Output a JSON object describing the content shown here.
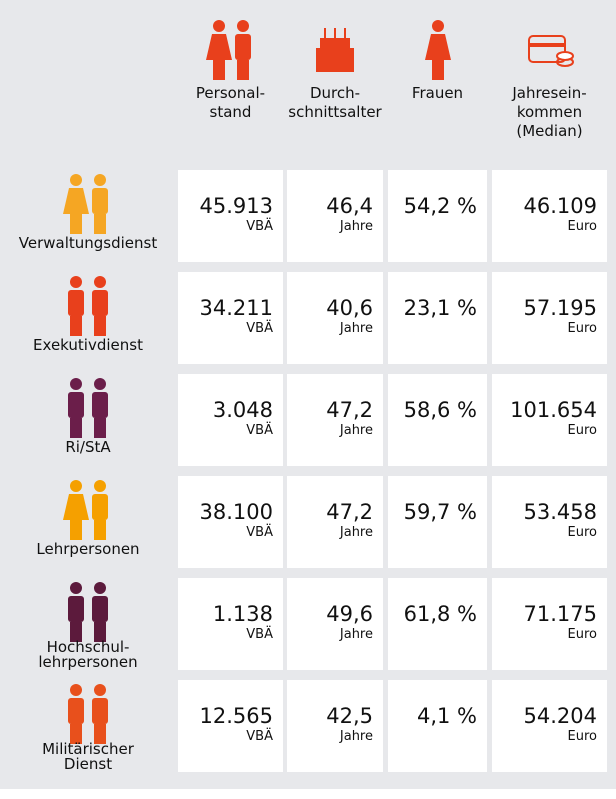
{
  "columns": [
    {
      "lines": [
        "Personal-",
        "stand"
      ]
    },
    {
      "lines": [
        "Durch-",
        "schnittsalter"
      ]
    },
    {
      "lines": [
        "Frauen"
      ]
    },
    {
      "lines": [
        "Jahresein-",
        "kommen",
        "(Median)"
      ]
    }
  ],
  "rows": [
    {
      "label": [
        "Verwaltungsdienst"
      ],
      "cells": [
        {
          "value": "45.913",
          "unit": "VBÄ"
        },
        {
          "value": "46,4",
          "unit": "Jahre"
        },
        {
          "value": "54,2 %"
        },
        {
          "value": "46.109",
          "unit": "Euro"
        }
      ]
    },
    {
      "label": [
        "Exekutivdienst"
      ],
      "cells": [
        {
          "value": "34.211",
          "unit": "VBÄ"
        },
        {
          "value": "40,6",
          "unit": "Jahre"
        },
        {
          "value": "23,1 %"
        },
        {
          "value": "57.195",
          "unit": "Euro"
        }
      ]
    },
    {
      "label": [
        "Ri/StA"
      ],
      "cells": [
        {
          "value": "3.048",
          "unit": "VBÄ"
        },
        {
          "value": "47,2",
          "unit": "Jahre"
        },
        {
          "value": "58,6 %"
        },
        {
          "value": "101.654",
          "unit": "Euro"
        }
      ]
    },
    {
      "label": [
        "Lehrpersonen"
      ],
      "cells": [
        {
          "value": "38.100",
          "unit": "VBÄ"
        },
        {
          "value": "47,2",
          "unit": "Jahre"
        },
        {
          "value": "59,7 %"
        },
        {
          "value": "53.458",
          "unit": "Euro"
        }
      ]
    },
    {
      "label": [
        "Hochschul-",
        "lehrpersonen"
      ],
      "cells": [
        {
          "value": "1.138",
          "unit": "VBÄ"
        },
        {
          "value": "49,6",
          "unit": "Jahre"
        },
        {
          "value": "61,8 %"
        },
        {
          "value": "71.175",
          "unit": "Euro"
        }
      ]
    },
    {
      "label": [
        "Militärischer",
        "Dienst"
      ],
      "cells": [
        {
          "value": "12.565",
          "unit": "VBÄ"
        },
        {
          "value": "42,5",
          "unit": "Jahre"
        },
        {
          "value": "4,1 %"
        },
        {
          "value": "54.204",
          "unit": "Euro"
        }
      ]
    }
  ]
}
